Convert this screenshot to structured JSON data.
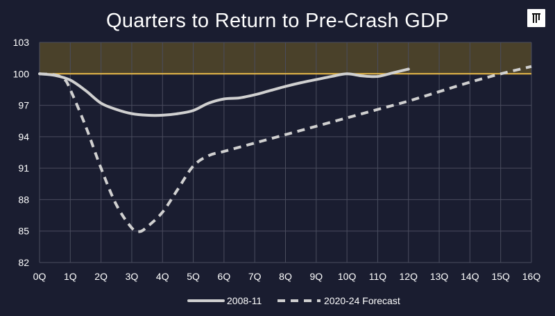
{
  "chart_data": {
    "type": "line",
    "title": "Quarters to Return to Pre-Crash GDP",
    "categories": [
      "0Q",
      "1Q",
      "2Q",
      "3Q",
      "4Q",
      "5Q",
      "6Q",
      "7Q",
      "8Q",
      "9Q",
      "10Q",
      "11Q",
      "12Q",
      "13Q",
      "14Q",
      "15Q",
      "16Q"
    ],
    "ylim": [
      82,
      103
    ],
    "yticks": [
      82,
      85,
      88,
      91,
      94,
      97,
      100,
      103
    ],
    "reference_line": 100,
    "shaded_band": [
      100,
      103
    ],
    "grid": true,
    "legend_position": "bottom",
    "series": [
      {
        "name": "2008-11",
        "style": "solid",
        "x": [
          0,
          0.5,
          1,
          1.5,
          2,
          2.5,
          3,
          3.5,
          4,
          4.5,
          5,
          5.5,
          6,
          6.5,
          7,
          7.5,
          8,
          8.5,
          9,
          9.5,
          10,
          10.5,
          11,
          11.5,
          12
        ],
        "values": [
          100,
          99.85,
          99.4,
          98.4,
          97.2,
          96.6,
          96.2,
          96.05,
          96.05,
          96.2,
          96.5,
          97.2,
          97.6,
          97.7,
          98.0,
          98.4,
          98.8,
          99.15,
          99.45,
          99.75,
          100.0,
          99.8,
          99.75,
          100.1,
          100.45
        ]
      },
      {
        "name": "2020-24 Forecast",
        "style": "dashed",
        "x": [
          0,
          0.5,
          0.8,
          1,
          1.5,
          2,
          2.5,
          3,
          3.25,
          3.5,
          4,
          4.5,
          5,
          5.5,
          6,
          7,
          8,
          9,
          10,
          11,
          12,
          13,
          14,
          15,
          16
        ],
        "values": [
          100,
          99.9,
          99.5,
          98.5,
          95.0,
          91.0,
          87.5,
          85.3,
          84.95,
          85.4,
          86.8,
          89.0,
          91.2,
          92.2,
          92.6,
          93.4,
          94.2,
          95.0,
          95.8,
          96.6,
          97.4,
          98.3,
          99.2,
          100.0,
          100.7
        ]
      }
    ],
    "colors": {
      "background": "#1a1d30",
      "grid": "#4a4d5e",
      "band": "#4a412a",
      "reference": "#e9bb4a",
      "series_2008": "#d0d0d0",
      "series_2020": "#d0d0d0"
    }
  }
}
